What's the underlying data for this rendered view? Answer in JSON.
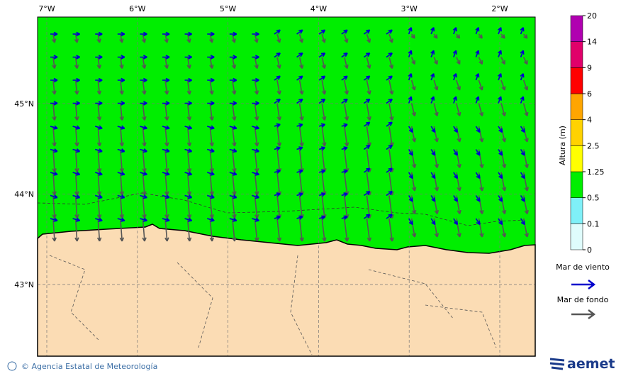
{
  "map": {
    "lon_labels": [
      "7°W",
      "6°W",
      "5°W",
      "4°W",
      "3°W",
      "2°W"
    ],
    "lat_labels": [
      "45°N",
      "44°N",
      "43°N"
    ],
    "colorbar": {
      "title": "Altura (m)",
      "ticks": [
        0,
        0.1,
        0.5,
        1.25,
        2.5,
        4,
        6,
        9,
        14,
        20
      ],
      "colors": [
        "#dffcfc",
        "#7ff0f8",
        "#00ee00",
        "#ffff00",
        "#ffd200",
        "#ffa500",
        "#ff0000",
        "#e0006a",
        "#b000b0"
      ]
    },
    "legend": [
      {
        "label": "Mar de viento",
        "color": "#0000cc"
      },
      {
        "label": "Mar de fondo",
        "color": "#555555"
      }
    ],
    "footer": {
      "credit": "© Agencia Estatal de Meteorología",
      "logo": "aemet"
    }
  }
}
